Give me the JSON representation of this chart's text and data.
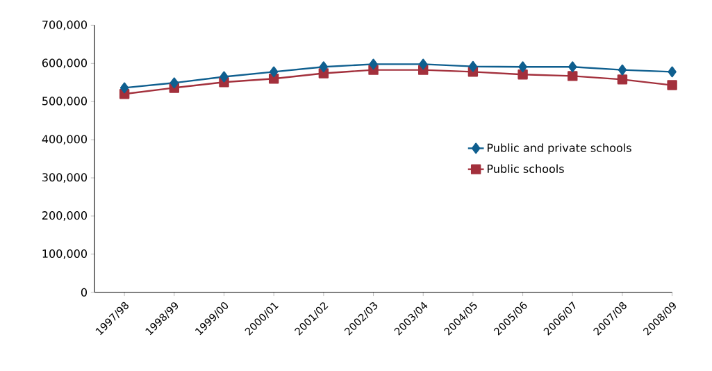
{
  "chart_data": {
    "type": "line",
    "categories": [
      "1997/98",
      "1998/99",
      "1999/00",
      "2000/01",
      "2001/02",
      "2002/03",
      "2003/04",
      "2004/05",
      "2005/06",
      "2006/07",
      "2007/08",
      "2008/09"
    ],
    "series": [
      {
        "name": "Public and private schools",
        "color": "#0f5f8f",
        "marker": "diamond",
        "values": [
          536000,
          549000,
          565000,
          578000,
          591000,
          598000,
          598000,
          592000,
          591000,
          591000,
          583000,
          578000
        ]
      },
      {
        "name": "Public schools",
        "color": "#a3303c",
        "marker": "square",
        "values": [
          520000,
          536000,
          551000,
          560000,
          574000,
          583000,
          583000,
          578000,
          571000,
          567000,
          558000,
          543000
        ]
      }
    ],
    "ylim": [
      0,
      700000
    ],
    "yticks": [
      {
        "value": 0,
        "label": "0"
      },
      {
        "value": 100000,
        "label": "100,000"
      },
      {
        "value": 200000,
        "label": "200,000"
      },
      {
        "value": 300000,
        "label": "300,000"
      },
      {
        "value": 400000,
        "label": "400,000"
      },
      {
        "value": 500000,
        "label": "500,000"
      },
      {
        "value": 600000,
        "label": "600,000"
      },
      {
        "value": 700000,
        "label": "700,000"
      }
    ],
    "grid": false,
    "legend": "right",
    "line_style": "solid"
  }
}
